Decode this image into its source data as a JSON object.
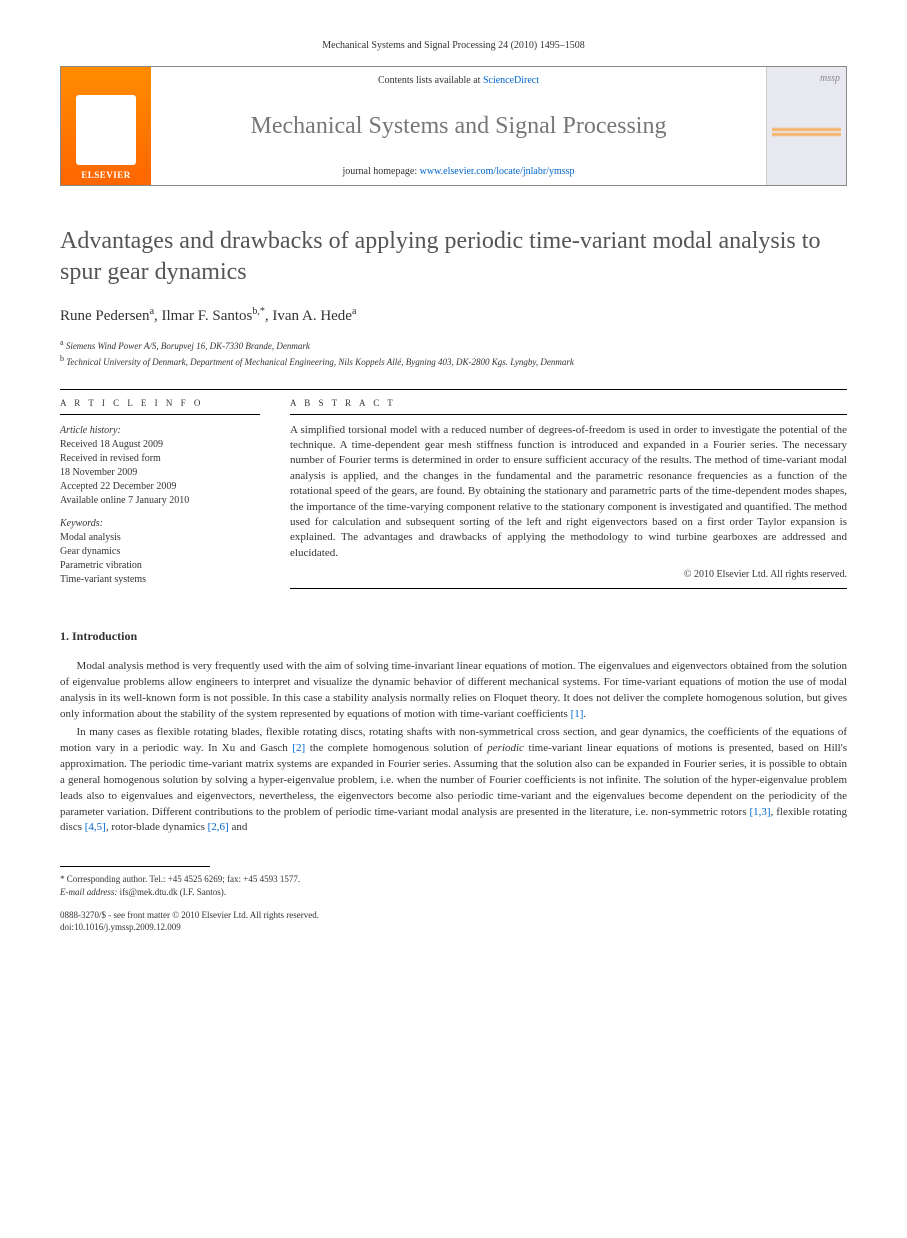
{
  "header": {
    "citation": "Mechanical Systems and Signal Processing 24 (2010) 1495–1508"
  },
  "masthead": {
    "contents_prefix": "Contents lists available at ",
    "contents_link": "ScienceDirect",
    "journal_name": "Mechanical Systems and Signal Processing",
    "homepage_prefix": "journal homepage: ",
    "homepage_url": "www.elsevier.com/locate/jnlabr/ymssp",
    "elsevier_label": "ELSEVIER",
    "cover_label": "mssp"
  },
  "article": {
    "title": "Advantages and drawbacks of applying periodic time-variant modal analysis to spur gear dynamics",
    "authors_html_parts": {
      "a1_name": "Rune Pedersen",
      "a1_sup": "a",
      "a2_name": "Ilmar F. Santos",
      "a2_sup": "b,*",
      "a3_name": "Ivan A. Hede",
      "a3_sup": "a"
    },
    "affiliations": {
      "a": "Siemens Wind Power A/S, Borupvej 16, DK-7330 Brande, Denmark",
      "b": "Technical University of Denmark, Department of Mechanical Engineering, Nils Koppels Allé, Bygning 403, DK-2800 Kgs. Lyngby, Denmark"
    }
  },
  "info": {
    "heading": "A R T I C L E   I N F O",
    "history_label": "Article history:",
    "history_lines": "Received 18 August 2009\nReceived in revised form\n18 November 2009\nAccepted 22 December 2009\nAvailable online 7 January 2010",
    "keywords_label": "Keywords:",
    "keywords_lines": "Modal analysis\nGear dynamics\nParametric vibration\nTime-variant systems"
  },
  "abstract": {
    "heading": "A B S T R A C T",
    "text": "A simplified torsional model with a reduced number of degrees-of-freedom is used in order to investigate the potential of the technique. A time-dependent gear mesh stiffness function is introduced and expanded in a Fourier series. The necessary number of Fourier terms is determined in order to ensure sufficient accuracy of the results. The method of time-variant modal analysis is applied, and the changes in the fundamental and the parametric resonance frequencies as a function of the rotational speed of the gears, are found. By obtaining the stationary and parametric parts of the time-dependent modes shapes, the importance of the time-varying component relative to the stationary component is investigated and quantified. The method used for calculation and subsequent sorting of the left and right eigenvectors based on a first order Taylor expansion is explained. The advantages and drawbacks of applying the methodology to wind turbine gearboxes are addressed and elucidated.",
    "copyright": "© 2010 Elsevier Ltd. All rights reserved."
  },
  "sections": {
    "s1_heading": "1.  Introduction",
    "s1_p1": "Modal analysis method is very frequently used with the aim of solving time-invariant linear equations of motion. The eigenvalues and eigenvectors obtained from the solution of eigenvalue problems allow engineers to interpret and visualize the dynamic behavior of different mechanical systems. For time-variant equations of motion the use of modal analysis in its well-known form is not possible. In this case a stability analysis normally relies on Floquet theory. It does not deliver the complete homogenous solution, but gives only information about the stability of the system represented by equations of motion with time-variant coefficients ",
    "s1_p1_ref1": "[1]",
    "s1_p1_tail": ".",
    "s1_p2_a": "In many cases as flexible rotating blades, flexible rotating discs, rotating shafts with non-symmetrical cross section, and gear dynamics, the coefficients of the equations of motion vary in a periodic way. In Xu and Gasch ",
    "s1_p2_ref2": "[2]",
    "s1_p2_b": " the complete homogenous solution of ",
    "s1_p2_em": "periodic",
    "s1_p2_c": " time-variant linear equations of motions is presented, based on Hill's approximation. The periodic time-variant matrix systems are expanded in Fourier series. Assuming that the solution also can be expanded in Fourier series, it is possible to obtain a general homogenous solution by solving a hyper-eigenvalue problem, i.e. when the number of Fourier coefficients is not infinite. The solution of the hyper-eigenvalue problem leads also to eigenvalues and eigenvectors, nevertheless, the eigenvectors become also periodic time-variant and the eigenvalues become dependent on the periodicity of the parameter variation. Different contributions to the problem of periodic time-variant modal analysis are presented in the literature, i.e. non-symmetric rotors ",
    "s1_p2_ref13": "[1,3]",
    "s1_p2_d": ", flexible rotating discs ",
    "s1_p2_ref45": "[4,5]",
    "s1_p2_e": ", rotor-blade dynamics ",
    "s1_p2_ref26": "[2,6]",
    "s1_p2_f": " and"
  },
  "footnote": {
    "corr_label": "* Corresponding author. Tel.: +45 4525 6269; fax: +45 4593 1577.",
    "email_label": "E-mail address:",
    "email": "ifs@mek.dtu.dk (I.F. Santos)."
  },
  "footer": {
    "issn_line": "0888-3270/$ - see front matter © 2010 Elsevier Ltd. All rights reserved.",
    "doi_line": "doi:10.1016/j.ymssp.2009.12.009"
  }
}
